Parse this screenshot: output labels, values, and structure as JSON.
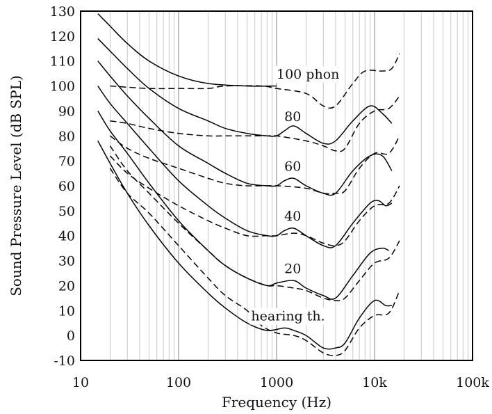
{
  "chart_data": {
    "type": "line",
    "xlabel": "Frequency (Hz)",
    "ylabel": "Sound Pressure Level (dB SPL)",
    "xscale": "log",
    "xlim": [
      10,
      100000
    ],
    "ylim": [
      -10,
      130
    ],
    "grid": "vertical minor and major lines at log decades",
    "x_ticks": [
      {
        "value": 10,
        "label": "10"
      },
      {
        "value": 100,
        "label": "100"
      },
      {
        "value": 1000,
        "label": "1000"
      },
      {
        "value": 10000,
        "label": "10k"
      },
      {
        "value": 100000,
        "label": "100k"
      }
    ],
    "y_ticks": [
      {
        "value": 130,
        "label": "130"
      },
      {
        "value": 120,
        "label": "120"
      },
      {
        "value": 110,
        "label": "110"
      },
      {
        "value": 100,
        "label": "100"
      },
      {
        "value": 90,
        "label": "90"
      },
      {
        "value": 80,
        "label": "80"
      },
      {
        "value": 70,
        "label": "70"
      },
      {
        "value": 60,
        "label": "60"
      },
      {
        "value": 50,
        "label": "50"
      },
      {
        "value": 40,
        "label": "40"
      },
      {
        "value": 30,
        "label": "30"
      },
      {
        "value": 20,
        "label": "20"
      },
      {
        "value": 10,
        "label": "10"
      },
      {
        "value": 0,
        "label": "0"
      },
      {
        "value": -10,
        "label": "-10"
      }
    ],
    "annotations": [
      {
        "text": "100 phon",
        "x": 1000,
        "y": 103
      },
      {
        "text": "80",
        "x": 1200,
        "y": 86
      },
      {
        "text": "60",
        "x": 1200,
        "y": 66
      },
      {
        "text": "40",
        "x": 1200,
        "y": 46
      },
      {
        "text": "20",
        "x": 1200,
        "y": 25
      },
      {
        "text": "hearing th.",
        "x": 550,
        "y": 6
      }
    ],
    "series": [
      {
        "style": "solid",
        "points": [
          [
            15,
            129
          ],
          [
            20,
            124
          ],
          [
            30,
            117
          ],
          [
            50,
            110
          ],
          [
            100,
            104
          ],
          [
            200,
            101
          ],
          [
            500,
            100
          ],
          [
            1000,
            100
          ]
        ]
      },
      {
        "style": "solid",
        "points": [
          [
            15,
            119
          ],
          [
            20,
            114
          ],
          [
            30,
            107
          ],
          [
            50,
            99
          ],
          [
            100,
            91
          ],
          [
            200,
            86
          ],
          [
            300,
            83
          ],
          [
            500,
            81
          ],
          [
            800,
            80
          ],
          [
            1000,
            80
          ],
          [
            1200,
            82
          ],
          [
            1500,
            84
          ],
          [
            2000,
            81
          ],
          [
            3000,
            77
          ],
          [
            4000,
            78
          ],
          [
            6000,
            86
          ],
          [
            9000,
            92
          ],
          [
            12000,
            89
          ],
          [
            15000,
            85
          ]
        ]
      },
      {
        "style": "solid",
        "points": [
          [
            15,
            110
          ],
          [
            20,
            104
          ],
          [
            30,
            96
          ],
          [
            50,
            87
          ],
          [
            100,
            76
          ],
          [
            200,
            69
          ],
          [
            300,
            65
          ],
          [
            500,
            61
          ],
          [
            800,
            60
          ],
          [
            1000,
            60
          ],
          [
            1200,
            62
          ],
          [
            1500,
            63
          ],
          [
            2000,
            60
          ],
          [
            3000,
            57
          ],
          [
            4000,
            57
          ],
          [
            6000,
            66
          ],
          [
            9000,
            72
          ],
          [
            12000,
            72
          ],
          [
            15000,
            66
          ]
        ]
      },
      {
        "style": "solid",
        "points": [
          [
            15,
            100
          ],
          [
            20,
            93
          ],
          [
            30,
            85
          ],
          [
            50,
            75
          ],
          [
            100,
            62
          ],
          [
            200,
            52
          ],
          [
            300,
            47
          ],
          [
            500,
            42
          ],
          [
            800,
            40
          ],
          [
            1000,
            40
          ],
          [
            1200,
            42
          ],
          [
            1500,
            43
          ],
          [
            2000,
            40
          ],
          [
            3000,
            36
          ],
          [
            4000,
            36
          ],
          [
            6000,
            45
          ],
          [
            9000,
            53
          ],
          [
            11000,
            54
          ],
          [
            13000,
            52
          ],
          [
            15000,
            53
          ]
        ]
      },
      {
        "style": "solid",
        "points": [
          [
            15,
            90
          ],
          [
            20,
            82
          ],
          [
            30,
            73
          ],
          [
            50,
            61
          ],
          [
            100,
            46
          ],
          [
            200,
            34
          ],
          [
            300,
            28
          ],
          [
            500,
            23
          ],
          [
            800,
            20
          ],
          [
            1000,
            21
          ],
          [
            1500,
            22
          ],
          [
            2000,
            19
          ],
          [
            3000,
            16
          ],
          [
            4000,
            15
          ],
          [
            6000,
            24
          ],
          [
            9000,
            33
          ],
          [
            12000,
            35
          ],
          [
            14000,
            34
          ]
        ]
      },
      {
        "style": "solid",
        "points": [
          [
            15,
            78
          ],
          [
            20,
            69
          ],
          [
            30,
            57
          ],
          [
            50,
            44
          ],
          [
            100,
            29
          ],
          [
            200,
            17
          ],
          [
            300,
            11
          ],
          [
            500,
            5
          ],
          [
            800,
            2
          ],
          [
            1200,
            3
          ],
          [
            1500,
            2
          ],
          [
            2000,
            0
          ],
          [
            3000,
            -5
          ],
          [
            4000,
            -5
          ],
          [
            5000,
            -3
          ],
          [
            7000,
            7
          ],
          [
            10000,
            14
          ],
          [
            13000,
            12
          ],
          [
            15000,
            12
          ]
        ]
      },
      {
        "style": "dashed",
        "points": [
          [
            20,
            100
          ],
          [
            50,
            99
          ],
          [
            100,
            99
          ],
          [
            200,
            99
          ],
          [
            300,
            100
          ],
          [
            700,
            100
          ],
          [
            1000,
            99
          ],
          [
            2000,
            97
          ],
          [
            3000,
            92
          ],
          [
            4000,
            92
          ],
          [
            6000,
            101
          ],
          [
            8000,
            106
          ],
          [
            12000,
            106
          ],
          [
            15000,
            107
          ],
          [
            18000,
            113
          ]
        ]
      },
      {
        "style": "dashed",
        "points": [
          [
            20,
            86
          ],
          [
            30,
            85
          ],
          [
            50,
            83
          ],
          [
            100,
            81
          ],
          [
            200,
            80
          ],
          [
            300,
            80
          ],
          [
            500,
            80
          ],
          [
            800,
            80
          ],
          [
            1000,
            80
          ],
          [
            2000,
            78
          ],
          [
            3000,
            76
          ],
          [
            4000,
            74
          ],
          [
            5000,
            75
          ],
          [
            7000,
            85
          ],
          [
            10000,
            90
          ],
          [
            14000,
            91
          ],
          [
            18000,
            96
          ]
        ]
      },
      {
        "style": "dashed",
        "points": [
          [
            20,
            80
          ],
          [
            30,
            75
          ],
          [
            50,
            71
          ],
          [
            100,
            67
          ],
          [
            200,
            63
          ],
          [
            300,
            61
          ],
          [
            500,
            60
          ],
          [
            1000,
            60
          ],
          [
            2000,
            59
          ],
          [
            3000,
            57
          ],
          [
            4000,
            57
          ],
          [
            5000,
            58
          ],
          [
            7000,
            67
          ],
          [
            10000,
            73
          ],
          [
            14000,
            73
          ],
          [
            18000,
            80
          ]
        ]
      },
      {
        "style": "dashed",
        "points": [
          [
            20,
            72
          ],
          [
            30,
            65
          ],
          [
            50,
            59
          ],
          [
            100,
            52
          ],
          [
            200,
            46
          ],
          [
            300,
            43
          ],
          [
            500,
            40
          ],
          [
            800,
            40
          ],
          [
            1000,
            40
          ],
          [
            1500,
            41
          ],
          [
            2000,
            40
          ],
          [
            3000,
            37
          ],
          [
            4000,
            36
          ],
          [
            5000,
            38
          ],
          [
            7000,
            46
          ],
          [
            10000,
            52
          ],
          [
            14000,
            53
          ],
          [
            18000,
            60
          ]
        ]
      },
      {
        "style": "dashed",
        "points": [
          [
            20,
            76
          ],
          [
            30,
            66
          ],
          [
            50,
            57
          ],
          [
            100,
            45
          ],
          [
            200,
            34
          ],
          [
            300,
            28
          ],
          [
            500,
            23
          ],
          [
            800,
            20
          ],
          [
            1000,
            20
          ],
          [
            1500,
            19
          ],
          [
            2000,
            18
          ],
          [
            3000,
            15
          ],
          [
            4000,
            14
          ],
          [
            5000,
            15
          ],
          [
            7000,
            22
          ],
          [
            10000,
            29
          ],
          [
            14000,
            31
          ],
          [
            18000,
            38
          ]
        ]
      },
      {
        "style": "dashed",
        "points": [
          [
            20,
            67
          ],
          [
            30,
            57
          ],
          [
            50,
            49
          ],
          [
            100,
            36
          ],
          [
            200,
            23
          ],
          [
            300,
            16
          ],
          [
            500,
            10
          ],
          [
            700,
            4
          ],
          [
            1000,
            1
          ],
          [
            1500,
            0
          ],
          [
            2000,
            -2
          ],
          [
            3000,
            -7
          ],
          [
            4000,
            -8
          ],
          [
            5000,
            -6
          ],
          [
            7000,
            3
          ],
          [
            10000,
            8
          ],
          [
            14000,
            9
          ],
          [
            18000,
            18
          ]
        ]
      }
    ]
  }
}
